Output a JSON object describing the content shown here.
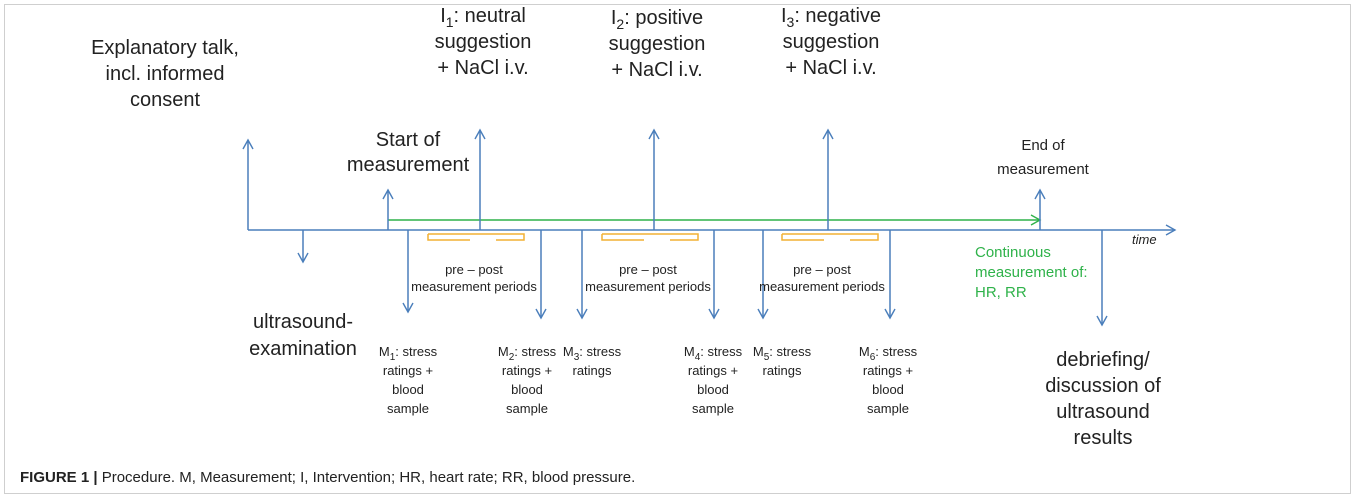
{
  "explanatory": [
    "Explanatory talk,",
    "incl. informed",
    "consent"
  ],
  "ultrasound": [
    "ultrasound-",
    "examination"
  ],
  "start": [
    "Start of",
    "measurement"
  ],
  "end": [
    "End of",
    "measurement"
  ],
  "debriefing": [
    "debriefing/",
    "discussion of",
    "ultrasound",
    "results"
  ],
  "interventions": [
    {
      "letter": "I",
      "sub": "1",
      "rest": ": neutral",
      "lines": [
        "suggestion",
        "+ NaCl i.v."
      ]
    },
    {
      "letter": "I",
      "sub": "2",
      "rest": ": positive",
      "lines": [
        "suggestion",
        "+ NaCl i.v."
      ]
    },
    {
      "letter": "I",
      "sub": "3",
      "rest": ": negative",
      "lines": [
        "suggestion",
        "+ NaCl i.v."
      ]
    }
  ],
  "periods": [
    "pre – post",
    "measurement periods"
  ],
  "measurements": [
    {
      "letter": "M",
      "sub": "1",
      "rest": ": stress",
      "lines": [
        "ratings +",
        "blood",
        "sample"
      ]
    },
    {
      "letter": "M",
      "sub": "2",
      "rest": ": stress",
      "lines": [
        "ratings +",
        "blood",
        "sample"
      ]
    },
    {
      "letter": "M",
      "sub": "3",
      "rest": ": stress",
      "lines": [
        "ratings"
      ]
    },
    {
      "letter": "M",
      "sub": "4",
      "rest": ": stress",
      "lines": [
        "ratings +",
        "blood",
        "sample"
      ]
    },
    {
      "letter": "M",
      "sub": "5",
      "rest": ": stress",
      "lines": [
        "ratings"
      ]
    },
    {
      "letter": "M",
      "sub": "6",
      "rest": ": stress",
      "lines": [
        "ratings +",
        "blood",
        "sample"
      ]
    }
  ],
  "time": "time",
  "continuous": [
    "Continuous",
    "measurement of:",
    "HR, RR"
  ],
  "caption": {
    "label": "FIGURE 1 |",
    "text": " Procedure. M, Measurement; I, Intervention; HR, heart rate; RR, blood pressure."
  }
}
